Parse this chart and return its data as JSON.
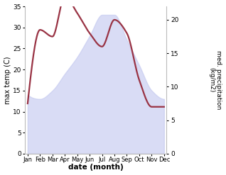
{
  "months": [
    "Jan",
    "Feb",
    "Mar",
    "Apr",
    "May",
    "Jun",
    "Jul",
    "Aug",
    "Sep",
    "Oct",
    "Nov",
    "Dec"
  ],
  "month_positions": [
    0,
    1,
    2,
    3,
    4,
    5,
    6,
    7,
    8,
    9,
    10,
    11
  ],
  "max_temp": [
    14,
    13,
    15,
    19,
    23,
    28,
    33,
    33,
    27,
    21,
    15,
    13
  ],
  "med_precip": [
    7.5,
    18.5,
    17.5,
    23.5,
    21,
    18,
    16,
    20,
    18,
    11,
    7,
    7
  ],
  "temp_color_fill": "#c5caf0",
  "temp_fill_alpha": 0.65,
  "precip_color": "#993344",
  "precip_linewidth": 1.6,
  "ylim_temp": [
    0,
    35
  ],
  "ylim_precip": [
    0,
    22.0
  ],
  "yticks_temp": [
    0,
    5,
    10,
    15,
    20,
    25,
    30,
    35
  ],
  "yticks_precip": [
    0,
    5,
    10,
    15,
    20
  ],
  "ylabel_left": "max temp (C)",
  "ylabel_right": "med. precipitation\n(kg/m2)",
  "xlabel": "date (month)",
  "bg_color": "#ffffff"
}
